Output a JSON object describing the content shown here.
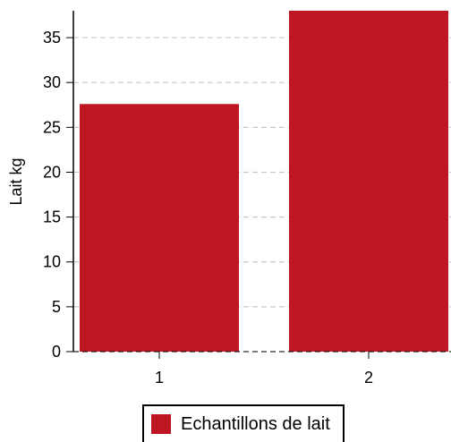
{
  "chart_data": {
    "type": "bar",
    "categories": [
      "1",
      "2"
    ],
    "series": [
      {
        "name": "Echantillons de lait",
        "values": [
          27.6,
          38.0
        ],
        "color": "#be1622"
      }
    ],
    "title": "",
    "xlabel": "",
    "ylabel": "Lait kg",
    "ylim": [
      0,
      38
    ],
    "yticks": [
      0,
      5,
      10,
      15,
      20,
      25,
      30,
      35
    ],
    "grid": true,
    "legend_position": "bottom-center"
  }
}
